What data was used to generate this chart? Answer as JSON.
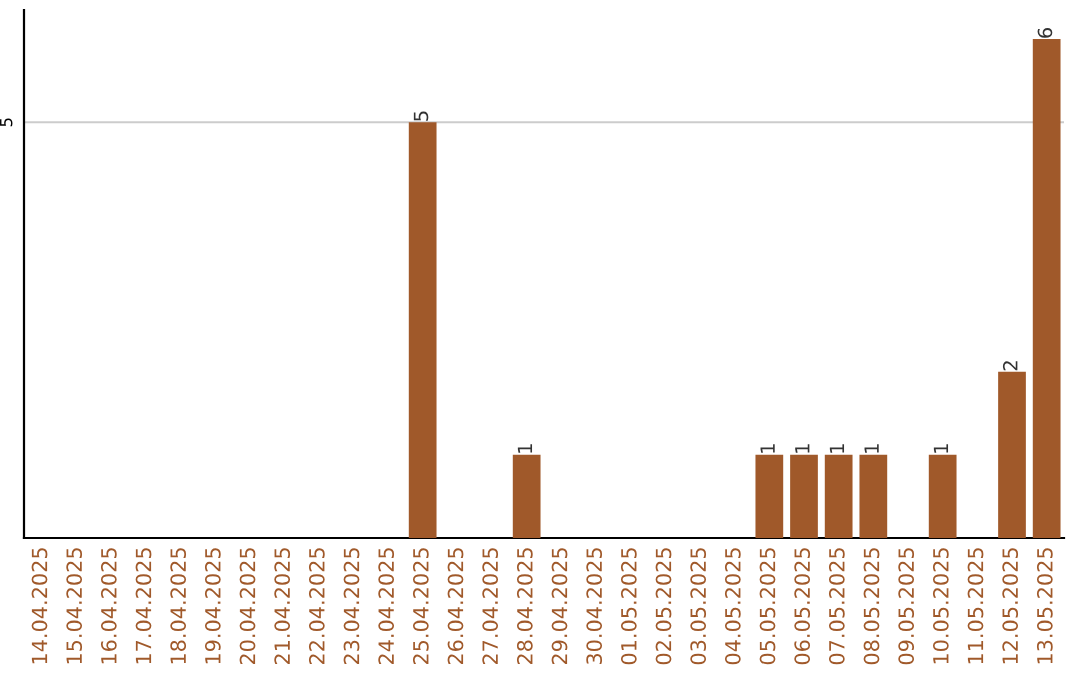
{
  "chart_data": {
    "type": "bar",
    "categories": [
      "14.04.2025",
      "15.04.2025",
      "16.04.2025",
      "17.04.2025",
      "18.04.2025",
      "19.04.2025",
      "20.04.2025",
      "21.04.2025",
      "22.04.2025",
      "23.04.2025",
      "24.04.2025",
      "25.04.2025",
      "26.04.2025",
      "27.04.2025",
      "28.04.2025",
      "29.04.2025",
      "30.04.2025",
      "01.05.2025",
      "02.05.2025",
      "03.05.2025",
      "04.05.2025",
      "05.05.2025",
      "06.05.2025",
      "07.05.2025",
      "08.05.2025",
      "09.05.2025",
      "10.05.2025",
      "11.05.2025",
      "12.05.2025",
      "13.05.2025"
    ],
    "values": [
      0,
      0,
      0,
      0,
      0,
      0,
      0,
      0,
      0,
      0,
      0,
      5,
      0,
      0,
      1,
      0,
      0,
      0,
      0,
      0,
      0,
      1,
      1,
      1,
      1,
      0,
      1,
      0,
      2,
      6
    ],
    "value_labels": [
      null,
      null,
      null,
      null,
      null,
      null,
      null,
      null,
      null,
      null,
      null,
      "5",
      null,
      null,
      "1",
      null,
      null,
      null,
      null,
      null,
      null,
      "1",
      "1",
      "1",
      "1",
      null,
      "1",
      null,
      "2",
      "6"
    ],
    "color": "#a0592a",
    "ylim": [
      0,
      6.35
    ],
    "yticks": [
      5
    ],
    "grid": "y",
    "legend": false
  }
}
